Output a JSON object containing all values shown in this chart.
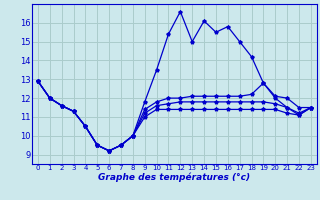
{
  "title": "Graphe des températures (°c)",
  "bg_color": "#cce8ec",
  "grid_color": "#aacccc",
  "line_color": "#0000cc",
  "xlim": [
    -0.5,
    23.5
  ],
  "ylim": [
    8.5,
    17.0
  ],
  "xticks": [
    0,
    1,
    2,
    3,
    4,
    5,
    6,
    7,
    8,
    9,
    10,
    11,
    12,
    13,
    14,
    15,
    16,
    17,
    18,
    19,
    20,
    21,
    22,
    23
  ],
  "yticks": [
    9,
    10,
    11,
    12,
    13,
    14,
    15,
    16
  ],
  "x": [
    0,
    1,
    2,
    3,
    4,
    5,
    6,
    7,
    8,
    9,
    10,
    11,
    12,
    13,
    14,
    15,
    16,
    17,
    18,
    19,
    20,
    21,
    22,
    23
  ],
  "s1_y": [
    12.9,
    12.0,
    11.6,
    11.3,
    10.5,
    9.5,
    9.2,
    9.5,
    10.0,
    11.0,
    11.4,
    11.4,
    11.4,
    11.4,
    11.4,
    11.4,
    11.4,
    11.4,
    11.4,
    11.4,
    11.4,
    11.2,
    11.1,
    11.5
  ],
  "s2_y": [
    12.9,
    12.0,
    11.6,
    11.3,
    10.5,
    9.5,
    9.2,
    9.5,
    10.0,
    11.2,
    11.6,
    11.7,
    11.8,
    11.8,
    11.8,
    11.8,
    11.8,
    11.8,
    11.8,
    11.8,
    11.7,
    11.5,
    11.2,
    11.5
  ],
  "s3_y": [
    12.9,
    12.0,
    11.6,
    11.3,
    10.5,
    9.5,
    9.2,
    9.5,
    10.0,
    11.4,
    11.8,
    12.0,
    12.0,
    12.1,
    12.1,
    12.1,
    12.1,
    12.1,
    12.2,
    12.8,
    12.1,
    12.0,
    11.5,
    11.5
  ],
  "s4_y": [
    12.9,
    12.0,
    11.6,
    11.3,
    10.5,
    9.5,
    9.2,
    9.5,
    10.0,
    11.8,
    13.5,
    15.4,
    16.6,
    15.0,
    16.1,
    15.5,
    15.8,
    15.0,
    14.2,
    12.8,
    12.0,
    11.5,
    11.1,
    11.5
  ]
}
